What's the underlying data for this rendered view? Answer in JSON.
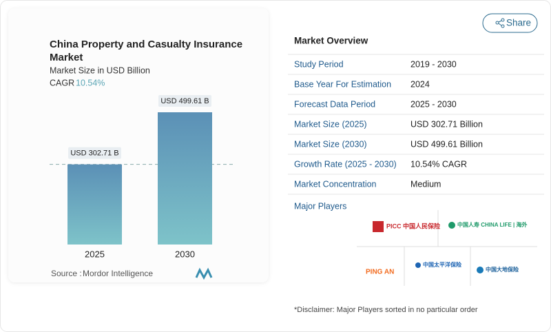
{
  "chart_data": {
    "type": "bar",
    "title": "China Property and Casualty Insurance Market",
    "subtitle": "Market Size in USD Billion",
    "cagr_label": "CAGR",
    "cagr": "10.54%",
    "categories": [
      "2025",
      "2030"
    ],
    "values": [
      302.71,
      499.61
    ],
    "value_labels": [
      "USD 302.71 B",
      "USD 499.61 B"
    ],
    "source_label": "Source :",
    "source": "Mordor Intelligence"
  },
  "share": "Share",
  "overview": {
    "title": "Market Overview",
    "rows": [
      [
        "Study Period",
        "2019 - 2030"
      ],
      [
        "Base Year For Estimation",
        "2024"
      ],
      [
        "Forecast Data Period",
        "2025 - 2030"
      ],
      [
        "Market Size (2025)",
        "USD 302.71 Billion"
      ],
      [
        "Market Size (2030)",
        "USD 499.61 Billion"
      ],
      [
        "Growth Rate (2025 - 2030)",
        "10.54% CAGR"
      ],
      [
        "Market Concentration",
        "Medium"
      ]
    ]
  },
  "players": {
    "title": "Major Players",
    "logos": [
      "PICC 中国人民保险",
      "中国人寿 CHINA LIFE | 海外",
      "PING AN",
      "中国太平洋保险",
      "中国大地保险"
    ]
  },
  "disclaimer": "*Disclaimer: Major Players sorted in no particular order"
}
